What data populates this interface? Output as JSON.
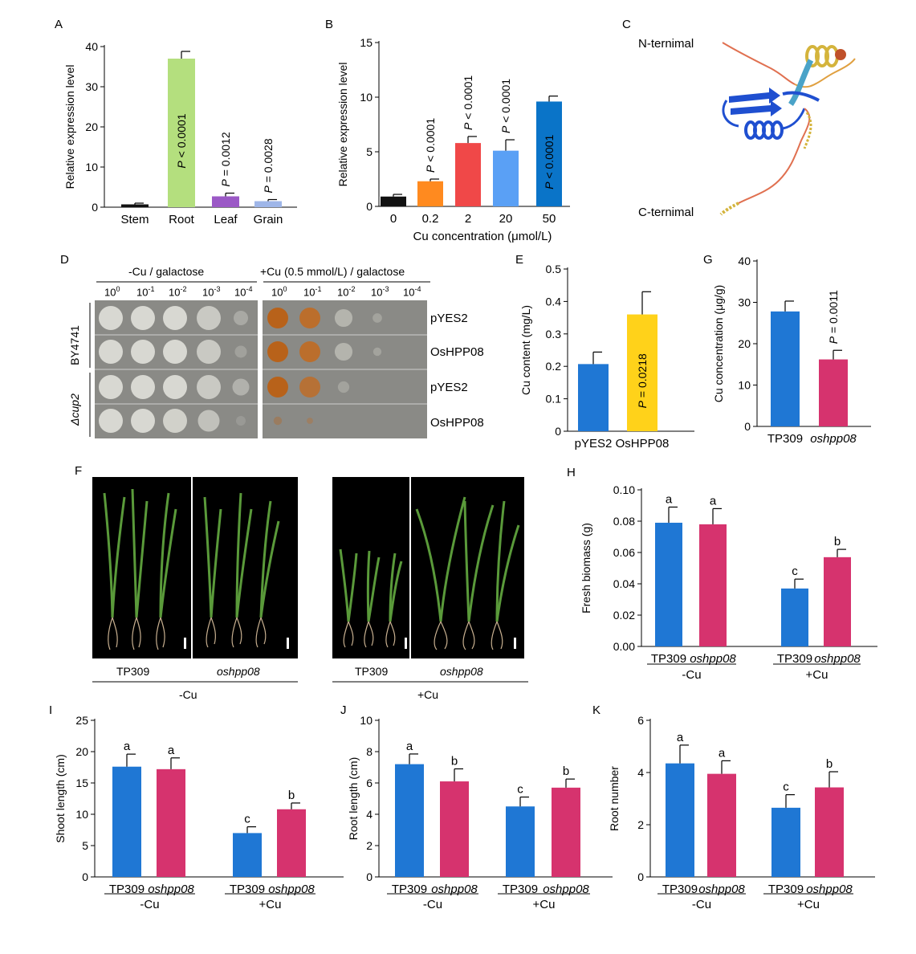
{
  "panels": {
    "A": "A",
    "B": "B",
    "C": "C",
    "D": "D",
    "E": "E",
    "F": "F",
    "G": "G",
    "H": "H",
    "I": "I",
    "J": "J",
    "K": "K"
  },
  "colors": {
    "tp309": "#1f77d4",
    "mutant": "#d6336e",
    "stem": "#111111",
    "root": "#b4df7e",
    "leaf": "#9b59c6",
    "grain": "#9fb6e8",
    "cu0": "#111111",
    "cu02": "#ff8a1f",
    "cu2": "#f04848",
    "cu20": "#5aa0f5",
    "cu50": "#0a74c8",
    "osHPP08_bar": "#ffd21a",
    "helix": "#d4b43c",
    "sheet": "#1f4fd0",
    "coil_orange": "#e07050",
    "coil_blue": "#4aa3c8"
  },
  "structure": {
    "n_terminal": "N-ternimal",
    "c_terminal": "C-ternimal"
  },
  "yeast": {
    "header_left": "-Cu / galactose",
    "header_right": "+Cu (0.5 mmol/L) / galactose",
    "dilutions": [
      {
        "base": "10",
        "exp": "0"
      },
      {
        "base": "10",
        "exp": "-1"
      },
      {
        "base": "10",
        "exp": "-2"
      },
      {
        "base": "10",
        "exp": "-3"
      },
      {
        "base": "10",
        "exp": "-4"
      }
    ],
    "strains": [
      "BY4741",
      "Δcup2"
    ],
    "rows": [
      "pYES2",
      "OsHPP08",
      "pYES2",
      "OsHPP08"
    ]
  },
  "photos": {
    "groups": [
      {
        "labels": [
          "TP309",
          "oshpp08"
        ],
        "condition": "-Cu"
      },
      {
        "labels": [
          "TP309",
          "oshpp08"
        ],
        "condition": "+Cu"
      }
    ]
  },
  "chart_data": [
    {
      "panel": "A",
      "type": "bar",
      "categories": [
        "Stem",
        "Root",
        "Leaf",
        "Grain"
      ],
      "values": [
        0.7,
        37.0,
        2.7,
        1.5
      ],
      "errors": [
        0.3,
        1.8,
        0.8,
        0.4
      ],
      "bar_colors": [
        "#111111",
        "#b4df7e",
        "#9b59c6",
        "#9fb6e8"
      ],
      "annotations": [
        "",
        "P < 0.0001",
        "P = 0.0012",
        "P = 0.0028"
      ],
      "ylabel": "Relative expression level",
      "xlabel": "",
      "ylim": [
        0,
        40
      ],
      "yticks": [
        0,
        10,
        20,
        30,
        40
      ]
    },
    {
      "panel": "B",
      "type": "bar",
      "categories": [
        "0",
        "0.2",
        "2",
        "20",
        "50"
      ],
      "values": [
        0.9,
        2.3,
        5.8,
        5.1,
        9.6
      ],
      "errors": [
        0.2,
        0.2,
        0.6,
        1.0,
        0.5
      ],
      "bar_colors": [
        "#111111",
        "#ff8a1f",
        "#f04848",
        "#5aa0f5",
        "#0a74c8"
      ],
      "annotations": [
        "",
        "P < 0.0001",
        "P < 0.0001",
        "P < 0.0001",
        "P < 0.0001"
      ],
      "ylabel": "Relative expression level",
      "xlabel": "Cu concentration (μmol/L)",
      "ylim": [
        0,
        15
      ],
      "yticks": [
        0,
        5,
        10,
        15
      ]
    },
    {
      "panel": "E",
      "type": "bar",
      "categories": [
        "pYES2",
        "OsHPP08"
      ],
      "values": [
        0.207,
        0.36
      ],
      "errors": [
        0.037,
        0.07
      ],
      "bar_colors": [
        "#1f77d4",
        "#ffd21a"
      ],
      "annotations": [
        "",
        "P = 0.0218"
      ],
      "ylabel": "Cu content (mg/L)",
      "xlabel": "",
      "ylim": [
        0,
        0.5
      ],
      "yticks": [
        "0",
        "0.1",
        "0.2",
        "0.3",
        "0.4",
        "0.5"
      ]
    },
    {
      "panel": "G",
      "type": "bar",
      "categories": [
        "TP309",
        "oshpp08"
      ],
      "values": [
        27.8,
        16.2
      ],
      "errors": [
        2.5,
        2.2
      ],
      "bar_colors": [
        "#1f77d4",
        "#d6336e"
      ],
      "annotations": [
        "",
        "P = 0.0011"
      ],
      "ylabel": "Cu concentration (μg/g)",
      "xlabel": "",
      "ylim": [
        0,
        40
      ],
      "yticks": [
        0,
        10,
        20,
        30,
        40
      ]
    },
    {
      "panel": "H",
      "type": "bar",
      "categories": [
        "TP309",
        "oshpp08",
        "TP309",
        "oshpp08"
      ],
      "groups": [
        "-Cu",
        "+Cu"
      ],
      "values": [
        0.079,
        0.078,
        0.037,
        0.057
      ],
      "errors": [
        0.01,
        0.01,
        0.006,
        0.005
      ],
      "letters": [
        "a",
        "a",
        "c",
        "b"
      ],
      "bar_colors": [
        "#1f77d4",
        "#d6336e",
        "#1f77d4",
        "#d6336e"
      ],
      "ylabel": "Fresh biomass (g)",
      "xlabel": "",
      "ylim": [
        0,
        0.1
      ],
      "yticks": [
        "0.00",
        "0.02",
        "0.04",
        "0.06",
        "0.08",
        "0.10"
      ]
    },
    {
      "panel": "I",
      "type": "bar",
      "categories": [
        "TP309",
        "oshpp08",
        "TP309",
        "oshpp08"
      ],
      "groups": [
        "-Cu",
        "+Cu"
      ],
      "values": [
        17.6,
        17.2,
        7.0,
        10.8
      ],
      "errors": [
        2.0,
        1.8,
        1.0,
        1.0
      ],
      "letters": [
        "a",
        "a",
        "c",
        "b"
      ],
      "bar_colors": [
        "#1f77d4",
        "#d6336e",
        "#1f77d4",
        "#d6336e"
      ],
      "ylabel": "Shoot length (cm)",
      "xlabel": "",
      "ylim": [
        0,
        25
      ],
      "yticks": [
        0,
        5,
        10,
        15,
        20,
        25
      ]
    },
    {
      "panel": "J",
      "type": "bar",
      "categories": [
        "TP309",
        "oshpp08",
        "TP309",
        "oshpp08"
      ],
      "groups": [
        "-Cu",
        "+Cu"
      ],
      "values": [
        7.2,
        6.1,
        4.5,
        5.7
      ],
      "errors": [
        0.65,
        0.8,
        0.6,
        0.55
      ],
      "letters": [
        "a",
        "b",
        "c",
        "b"
      ],
      "bar_colors": [
        "#1f77d4",
        "#d6336e",
        "#1f77d4",
        "#d6336e"
      ],
      "ylabel": "Root length (cm)",
      "xlabel": "",
      "ylim": [
        0,
        10
      ],
      "yticks": [
        0,
        2,
        4,
        6,
        8,
        10
      ]
    },
    {
      "panel": "K",
      "type": "bar",
      "categories": [
        "TP309",
        "oshpp08",
        "TP309",
        "oshpp08"
      ],
      "groups": [
        "-Cu",
        "+Cu"
      ],
      "values": [
        4.35,
        3.95,
        2.65,
        3.43
      ],
      "errors": [
        0.7,
        0.5,
        0.5,
        0.6
      ],
      "letters": [
        "a",
        "a",
        "c",
        "b"
      ],
      "bar_colors": [
        "#1f77d4",
        "#d6336e",
        "#1f77d4",
        "#d6336e"
      ],
      "ylabel": "Root number",
      "xlabel": "",
      "ylim": [
        0,
        6
      ],
      "yticks": [
        0,
        2,
        4,
        6
      ]
    }
  ]
}
